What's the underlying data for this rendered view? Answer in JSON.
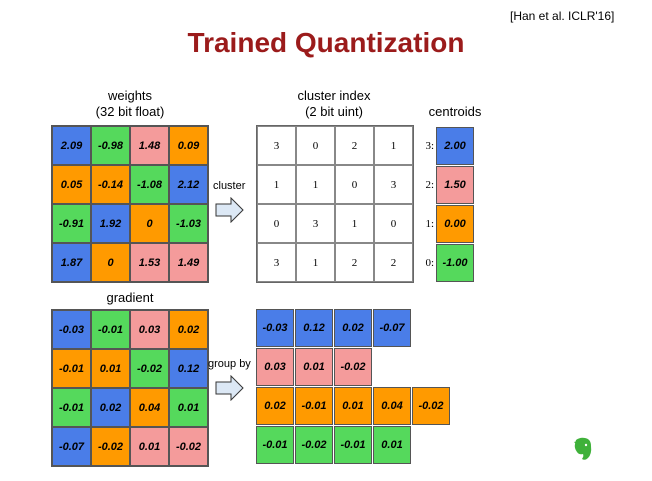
{
  "citation": "[Han et al. ICLR'16]",
  "title": "Trained Quantization",
  "colors": {
    "blue": "#4a7de8",
    "green": "#55d95c",
    "orange": "#ff9a00",
    "pink": "#f49b9b",
    "title": "#9b1b1b"
  },
  "weights": {
    "label": "weights",
    "sublabel": "(32 bit float)",
    "rows": [
      [
        "2.09",
        "-0.98",
        "1.48",
        "0.09"
      ],
      [
        "0.05",
        "-0.14",
        "-1.08",
        "2.12"
      ],
      [
        "-0.91",
        "1.92",
        "0",
        "-1.03"
      ],
      [
        "1.87",
        "0",
        "1.53",
        "1.49"
      ]
    ],
    "colors": [
      [
        "blue",
        "green",
        "pink",
        "orange"
      ],
      [
        "orange",
        "orange",
        "green",
        "blue"
      ],
      [
        "green",
        "blue",
        "orange",
        "green"
      ],
      [
        "blue",
        "orange",
        "pink",
        "pink"
      ]
    ]
  },
  "cluster_arrow_label": "cluster",
  "cluster_index": {
    "label": "cluster index",
    "sublabel": "(2 bit uint)",
    "rows": [
      [
        "3",
        "0",
        "2",
        "1"
      ],
      [
        "1",
        "1",
        "0",
        "3"
      ],
      [
        "0",
        "3",
        "1",
        "0"
      ],
      [
        "3",
        "1",
        "2",
        "2"
      ]
    ]
  },
  "centroids": {
    "label": "centroids",
    "items": [
      {
        "index": "3:",
        "value": "2.00",
        "color": "blue"
      },
      {
        "index": "2:",
        "value": "1.50",
        "color": "pink"
      },
      {
        "index": "1:",
        "value": "0.00",
        "color": "orange"
      },
      {
        "index": "0:",
        "value": "-1.00",
        "color": "green"
      }
    ]
  },
  "gradient": {
    "label": "gradient",
    "rows": [
      [
        "-0.03",
        "-0.01",
        "0.03",
        "0.02"
      ],
      [
        "-0.01",
        "0.01",
        "-0.02",
        "0.12"
      ],
      [
        "-0.01",
        "0.02",
        "0.04",
        "0.01"
      ],
      [
        "-0.07",
        "-0.02",
        "0.01",
        "-0.02"
      ]
    ],
    "colors": [
      [
        "blue",
        "green",
        "pink",
        "orange"
      ],
      [
        "orange",
        "orange",
        "green",
        "blue"
      ],
      [
        "green",
        "blue",
        "orange",
        "green"
      ],
      [
        "blue",
        "orange",
        "pink",
        "pink"
      ]
    ]
  },
  "group_arrow_label": "group by",
  "grouped": [
    {
      "color": "blue",
      "values": [
        "-0.03",
        "0.12",
        "0.02",
        "-0.07"
      ]
    },
    {
      "color": "pink",
      "values": [
        "0.03",
        "0.01",
        "-0.02"
      ]
    },
    {
      "color": "orange",
      "values": [
        "0.02",
        "-0.01",
        "0.01",
        "0.04",
        "-0.02"
      ]
    },
    {
      "color": "green",
      "values": [
        "-0.01",
        "-0.02",
        "-0.01",
        "0.01"
      ]
    }
  ]
}
